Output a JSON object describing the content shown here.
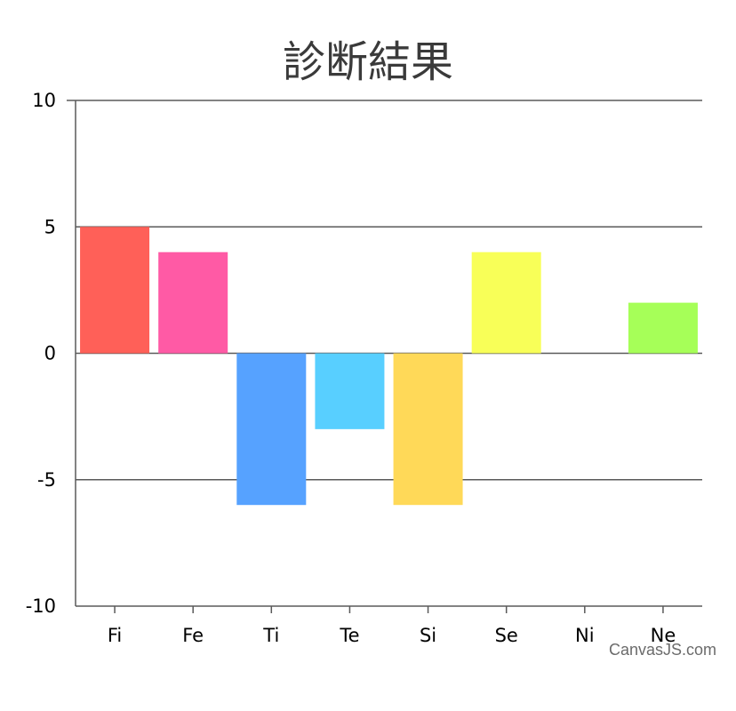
{
  "chart_data": {
    "type": "bar",
    "title": "診断結果",
    "categories": [
      "Fi",
      "Fe",
      "Ti",
      "Te",
      "Si",
      "Se",
      "Ni",
      "Ne"
    ],
    "values": [
      5,
      4,
      -6,
      -3,
      -6,
      4,
      0,
      2
    ],
    "colors": [
      "#FF6058",
      "#FF5AA5",
      "#56A2FF",
      "#58CFFF",
      "#FFD958",
      "#F8FF58",
      "#FFFFFF",
      "#A6FF58"
    ],
    "yticks": [
      "-10",
      "-5",
      "0",
      "5",
      "10"
    ],
    "ylim": [
      -10,
      10
    ],
    "grid": true,
    "xlabel": "",
    "ylabel": ""
  },
  "credit": "CanvasJS.com"
}
